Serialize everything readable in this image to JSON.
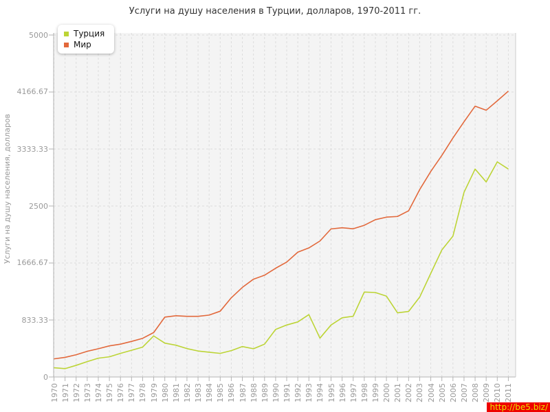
{
  "title": "Услуги на душу населения в Турции, долларов, 1970-2011 гг.",
  "watermark": "http://be5.biz/",
  "legend": {
    "items": [
      {
        "label": "Турция"
      },
      {
        "label": "Мир"
      }
    ]
  },
  "chart_data": {
    "type": "line",
    "title": "Услуги на душу населения в Турции, долларов, 1970-2011 гг.",
    "xlabel": "",
    "ylabel": "Услуги на душу населения, долларов",
    "ylim": [
      0,
      5000
    ],
    "yticks": [
      0,
      833.33,
      1666.67,
      2500,
      3333.33,
      4166.67,
      5000
    ],
    "ytick_labels": [
      "0",
      "833.33",
      "1666.67",
      "2500",
      "3333.33",
      "4166.67",
      "5000"
    ],
    "grid": true,
    "legend_position": "top-left",
    "x": [
      1970,
      1971,
      1972,
      1973,
      1974,
      1975,
      1976,
      1977,
      1978,
      1979,
      1980,
      1981,
      1982,
      1983,
      1984,
      1985,
      1986,
      1987,
      1988,
      1989,
      1990,
      1991,
      1992,
      1993,
      1994,
      1995,
      1996,
      1997,
      1998,
      1999,
      2000,
      2001,
      2002,
      2003,
      2004,
      2005,
      2006,
      2007,
      2008,
      2009,
      2010,
      2011
    ],
    "series": [
      {
        "name": "Турция",
        "color": "#bcd435",
        "values": [
          135,
          122,
          170,
          225,
          275,
          295,
          345,
          390,
          437,
          600,
          495,
          465,
          415,
          380,
          362,
          345,
          385,
          445,
          413,
          480,
          695,
          760,
          805,
          912,
          568,
          760,
          865,
          888,
          1242,
          1235,
          1182,
          938,
          958,
          1168,
          1515,
          1858,
          2060,
          2700,
          3040,
          2852,
          3145,
          3040
        ]
      },
      {
        "name": "Мир",
        "color": "#e2683b",
        "values": [
          265,
          287,
          325,
          375,
          413,
          455,
          480,
          520,
          565,
          650,
          875,
          895,
          887,
          887,
          905,
          962,
          1158,
          1310,
          1430,
          1488,
          1590,
          1680,
          1825,
          1887,
          1988,
          2165,
          2182,
          2167,
          2218,
          2300,
          2337,
          2347,
          2430,
          2740,
          3005,
          3240,
          3495,
          3732,
          3960,
          3900,
          4037,
          4180
        ]
      }
    ],
    "plot_bg_color": "#f4f4f4",
    "grid_color": "#dcdcdc",
    "axis_color": "#b3b3b3",
    "label_color": "#999999"
  }
}
